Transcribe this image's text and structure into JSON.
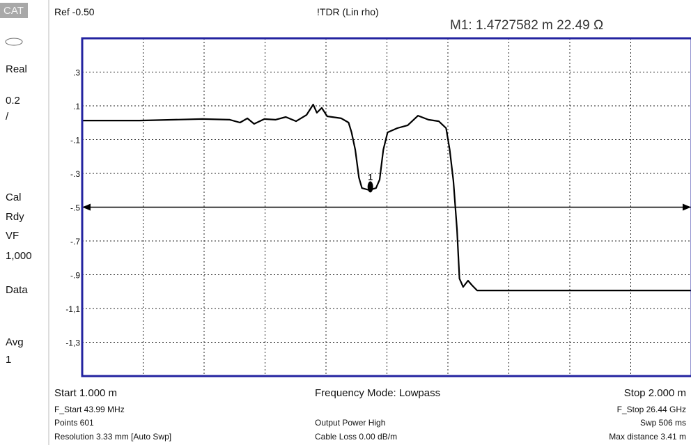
{
  "mode_tag": "CAT",
  "side_labels": [
    "Real",
    "0.2",
    "/",
    "Cal",
    "Rdy",
    "VF",
    "1,000",
    "Data",
    "Avg",
    "1"
  ],
  "header": {
    "reference": "Ref -0.50",
    "measurement": "!TDR (Lin rho)",
    "marker_readout": "M1:  1.4727582  m  22.49 Ω"
  },
  "footer": {
    "start": "Start 1.000 m",
    "mode": "Frequency Mode: Lowpass",
    "stop": "Stop 2.000 m",
    "f_start": "F_Start 43.99 MHz",
    "points": "Points 601",
    "resolution": "Resolution 3.33 mm  [Auto Swp]",
    "power": "Output Power High",
    "cable_loss": "Cable Loss 0.00  dB/m",
    "f_stop": "F_Stop 26.44 GHz",
    "sweep": "Swp 506 ms",
    "max_distance": "Max distance 3.41  m"
  },
  "chart_data": {
    "type": "line",
    "x": [
      1.0,
      1.094,
      1.197,
      1.242,
      1.259,
      1.271,
      1.282,
      1.299,
      1.317,
      1.334,
      1.351,
      1.368,
      1.379,
      1.385,
      1.393,
      1.402,
      1.425,
      1.437,
      1.442,
      1.448,
      1.454,
      1.459,
      1.471,
      1.482,
      1.488,
      1.494,
      1.501,
      1.517,
      1.534,
      1.551,
      1.568,
      1.585,
      1.597,
      1.603,
      1.609,
      1.615,
      1.619,
      1.625,
      1.633,
      1.64,
      1.648,
      2.0
    ],
    "series": [
      {
        "color": "#000000",
        "values": [
          0.013,
          0.013,
          0.022,
          0.018,
          0.001,
          0.026,
          -0.007,
          0.022,
          0.018,
          0.034,
          0.009,
          0.046,
          0.108,
          0.059,
          0.088,
          0.038,
          0.026,
          0.001,
          -0.057,
          -0.16,
          -0.325,
          -0.387,
          -0.399,
          -0.387,
          -0.337,
          -0.16,
          -0.057,
          -0.032,
          -0.015,
          0.042,
          0.018,
          0.009,
          -0.032,
          -0.16,
          -0.345,
          -0.634,
          -0.923,
          -0.972,
          -0.935,
          -0.964,
          -0.993,
          -0.993
        ]
      }
    ],
    "xlim": [
      1.0,
      2.0
    ],
    "xticks": [
      1.1,
      1.2,
      1.3,
      1.4,
      1.5,
      1.6,
      1.7,
      1.8,
      1.9
    ],
    "ylim": [
      -1.5,
      0.5
    ],
    "yticks": [
      {
        "value": 0.3,
        "label": ".3"
      },
      {
        "value": 0.1,
        "label": ".1"
      },
      {
        "value": -0.1,
        "label": "-.1"
      },
      {
        "value": -0.3,
        "label": "-.3"
      },
      {
        "value": -0.5,
        "label": "-.5"
      },
      {
        "value": -0.7,
        "label": "-.7"
      },
      {
        "value": -0.9,
        "label": "-.9"
      },
      {
        "value": -1.1,
        "label": "-1,1"
      },
      {
        "value": -1.3,
        "label": "-1,3"
      }
    ],
    "grid": true,
    "limit_line": -0.5,
    "marker": {
      "label": "1",
      "x": 1.4727582,
      "y": -0.38
    },
    "frame_color": "#2323a0"
  }
}
